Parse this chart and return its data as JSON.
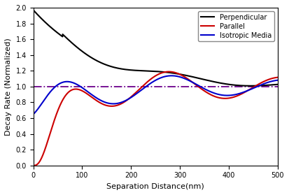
{
  "title": "",
  "xlabel": "Separation Distance(nm)",
  "ylabel": "Decay Rate (Normalized)",
  "xlim": [
    0,
    500
  ],
  "ylim": [
    0.0,
    2.0
  ],
  "yticks": [
    0.0,
    0.2,
    0.4,
    0.6,
    0.8,
    1.0,
    1.2,
    1.4,
    1.6,
    1.8,
    2.0
  ],
  "xticks": [
    0,
    100,
    200,
    300,
    400,
    500
  ],
  "hline_y": 1.0,
  "hline_color": "#6B008B",
  "hline_style": "-.",
  "legend_labels": [
    "Perpendicular",
    "Parallel",
    "Isotropic Media"
  ],
  "legend_colors": [
    "#000000",
    "#cc0000",
    "#0000cc"
  ],
  "background_color": "#ffffff",
  "line_width": 1.5
}
